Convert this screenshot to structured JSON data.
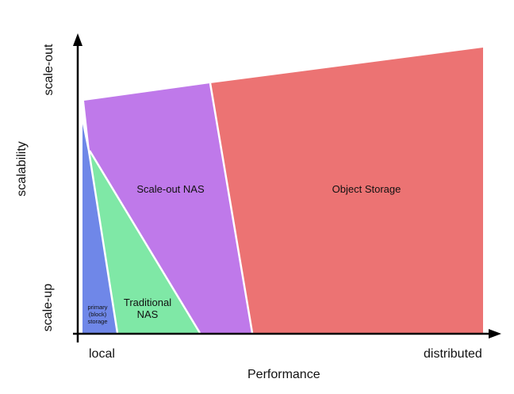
{
  "axes": {
    "x_title": "Performance",
    "x_low": "local",
    "x_high": "distributed",
    "y_title": "scalability",
    "y_low": "scale-up",
    "y_high": "scale-out"
  },
  "regions": [
    {
      "name": "primary-block-storage",
      "label_lines": [
        "primary",
        "(block)",
        "storage"
      ],
      "color": "#6f87e8"
    },
    {
      "name": "traditional-nas",
      "label_lines": [
        "Traditional",
        "NAS"
      ],
      "color": "#7fe8a6"
    },
    {
      "name": "scale-out-nas",
      "label": "Scale-out NAS",
      "color": "#bf79ea"
    },
    {
      "name": "object-storage",
      "label": "Object Storage",
      "color": "#ec7373"
    }
  ]
}
